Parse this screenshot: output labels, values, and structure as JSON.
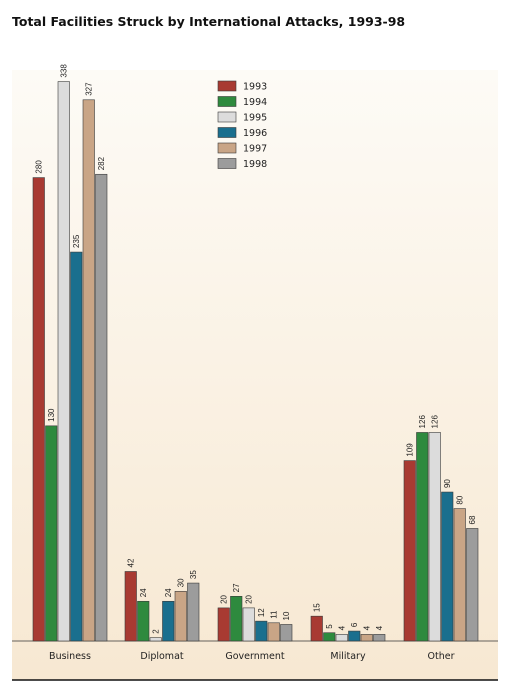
{
  "chart_data": {
    "type": "bar",
    "title": "Total Facilities Struck by International Attacks, 1993-98",
    "categories": [
      "Business",
      "Diplomat",
      "Government",
      "Military",
      "Other"
    ],
    "series": [
      {
        "name": "1993",
        "color": "#a83a32",
        "values": [
          280,
          42,
          20,
          15,
          109
        ]
      },
      {
        "name": "1994",
        "color": "#2e8a3e",
        "values": [
          130,
          24,
          27,
          5,
          126
        ]
      },
      {
        "name": "1995",
        "color": "#dcdcdc",
        "values": [
          338,
          2,
          20,
          4,
          126
        ]
      },
      {
        "name": "1996",
        "color": "#1a6f8e",
        "values": [
          235,
          24,
          12,
          6,
          90
        ]
      },
      {
        "name": "1997",
        "color": "#c9a586",
        "values": [
          327,
          30,
          11,
          4,
          80
        ]
      },
      {
        "name": "1998",
        "color": "#9c9c9c",
        "values": [
          282,
          35,
          10,
          4,
          68
        ]
      }
    ],
    "ylim": [
      0,
      345
    ],
    "legend_position": "top-center",
    "data_labels": true,
    "grid": false
  }
}
